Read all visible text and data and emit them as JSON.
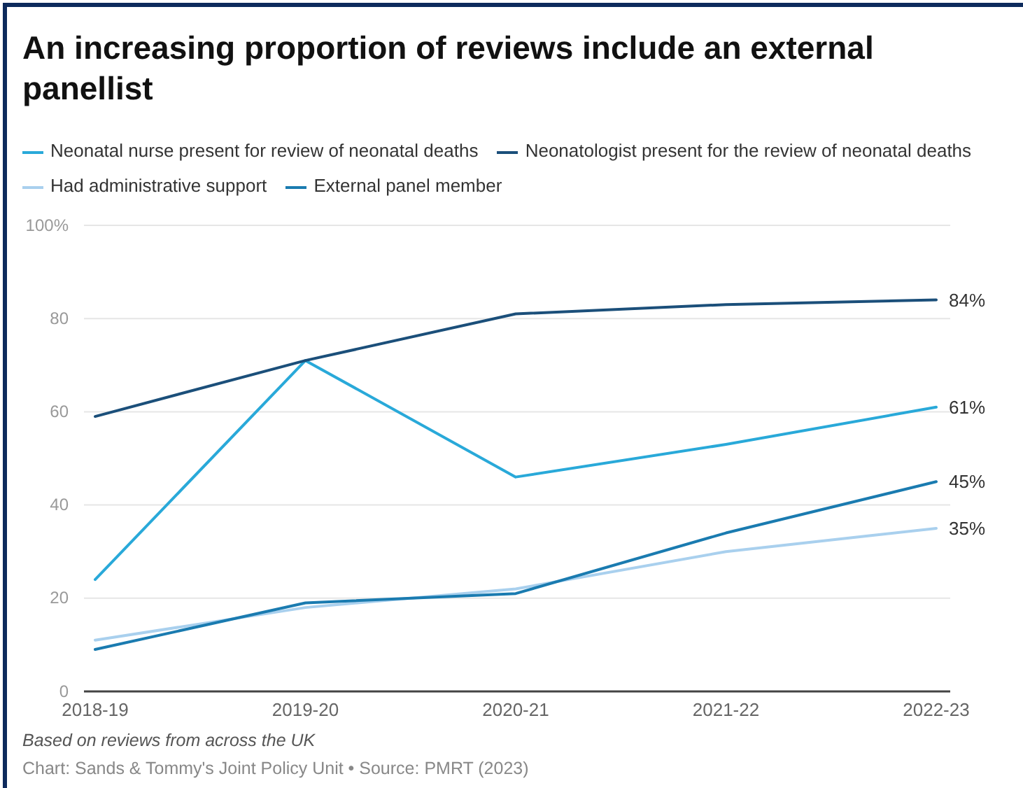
{
  "chart_data": {
    "type": "line",
    "title": "An increasing proportion of reviews include an external panellist",
    "categories": [
      "2018-19",
      "2019-20",
      "2020-21",
      "2021-22",
      "2022-23"
    ],
    "series": [
      {
        "name": "Neonatal nurse present for review of neonatal deaths",
        "color": "#29a9d9",
        "values": [
          24,
          71,
          46,
          53,
          61
        ],
        "value_labels": [
          null,
          null,
          null,
          null,
          "61%"
        ]
      },
      {
        "name": "Neonatologist present for the review of neonatal deaths",
        "color": "#1b4f7a",
        "values": [
          59,
          71,
          81,
          83,
          84
        ],
        "value_labels": [
          null,
          null,
          null,
          null,
          "84%"
        ]
      },
      {
        "name": "Had administrative support",
        "color": "#a9d0ee",
        "values": [
          11,
          18,
          22,
          30,
          35
        ],
        "value_labels": [
          null,
          null,
          null,
          null,
          "35%"
        ]
      },
      {
        "name": "External panel member",
        "color": "#1a7bb0",
        "values": [
          9,
          19,
          21,
          34,
          45
        ],
        "value_labels": [
          null,
          null,
          null,
          null,
          "45%"
        ]
      }
    ],
    "ylim": [
      0,
      100
    ],
    "yticks": [
      0,
      20,
      40,
      60,
      80,
      {
        "value": 100,
        "label": "100%"
      }
    ],
    "grid": "y",
    "legend": "top",
    "marker": "none",
    "line_style": "solid",
    "annotations": [
      "Based on reviews from across the UK",
      "Chart: Sands & Tommy's Joint Policy Unit • Source: PMRT (2023)"
    ]
  }
}
